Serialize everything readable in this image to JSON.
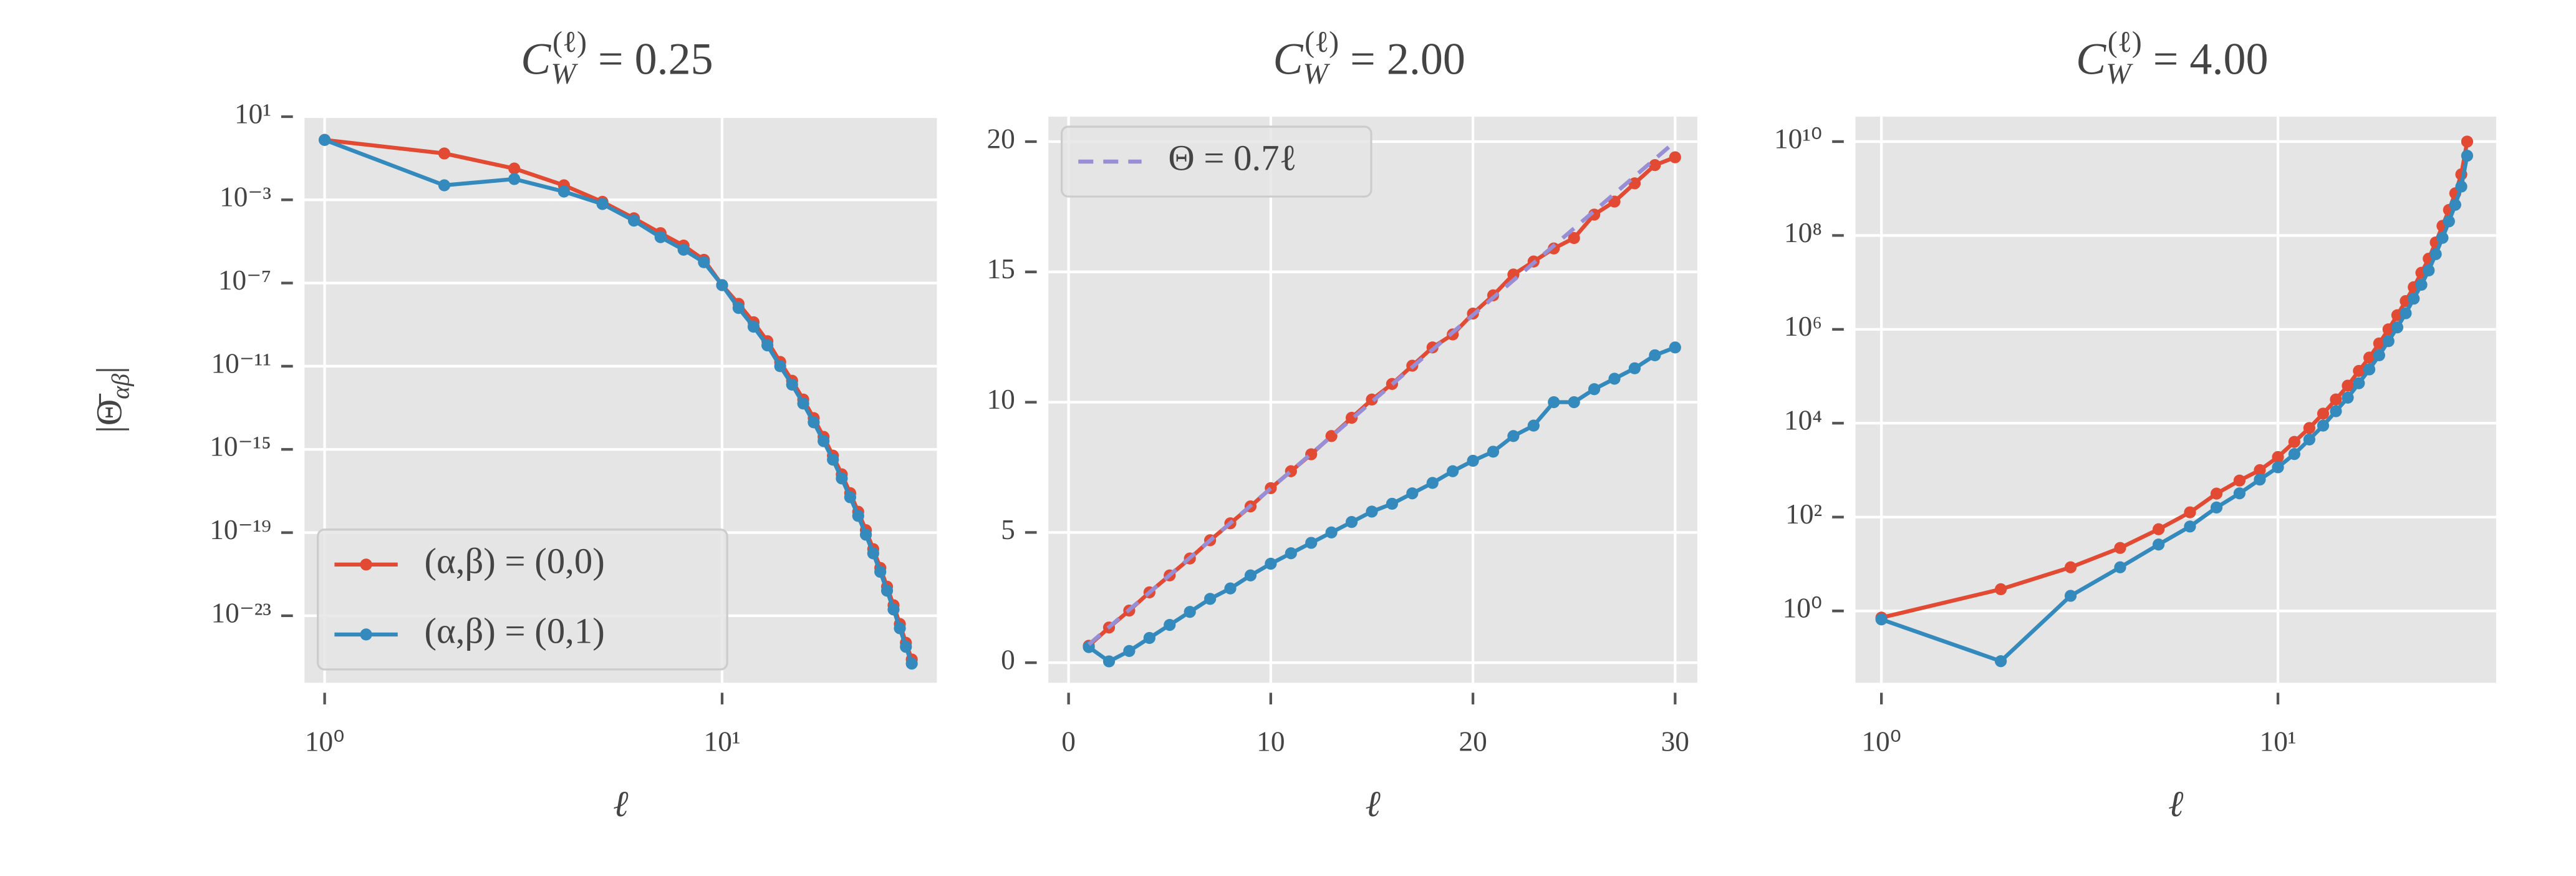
{
  "chart_data": [
    {
      "type": "line",
      "title": "CW(ℓ) = 0.25",
      "xlabel": "ℓ",
      "ylabel": "|Θ̄αβ|",
      "xscale": "log",
      "yscale": "log",
      "grid": true,
      "legend": "lower left",
      "xlim": [
        0.89,
        34.7
      ],
      "ylim": [
        6e-27,
        10
      ],
      "xticks": [
        {
          "value": 1,
          "label": "10⁰"
        },
        {
          "value": 10,
          "label": "10¹"
        }
      ],
      "yticks": [
        {
          "value": 10,
          "label": "10¹"
        },
        {
          "value": 0.001,
          "label": "10⁻³"
        },
        {
          "value": 1e-07,
          "label": "10⁻⁷"
        },
        {
          "value": 1e-11,
          "label": "10⁻¹¹"
        },
        {
          "value": 1e-15,
          "label": "10⁻¹⁵"
        },
        {
          "value": 1e-19,
          "label": "10⁻¹⁹"
        },
        {
          "value": 1e-23,
          "label": "10⁻²³"
        }
      ],
      "series": [
        {
          "name": "(α,β) = (0,0)",
          "color": "#E24A33",
          "x": [
            1,
            2,
            3,
            4,
            5,
            6,
            7,
            8,
            9,
            10,
            11,
            12,
            13,
            14,
            15,
            16,
            17,
            18,
            19,
            20,
            21,
            22,
            23,
            24,
            25,
            26,
            27,
            28,
            29,
            30
          ],
          "values": [
            0.76,
            0.17,
            0.032,
            0.005,
            0.0008,
            0.00013,
            2.5e-05,
            6.3e-06,
            1.3e-06,
            7.9e-08,
            1e-08,
            1.3e-09,
            1.6e-10,
            1.6e-11,
            2e-12,
            2.5e-13,
            3.2e-14,
            4e-15,
            5e-16,
            6.3e-17,
            7.9e-18,
            1e-18,
            1.3e-19,
            1.6e-20,
            2e-21,
            2.5e-22,
            3.2e-23,
            4e-24,
            5e-25,
            7.9e-26
          ]
        },
        {
          "name": "(α,β) = (0,1)",
          "color": "#348ABD",
          "x": [
            1,
            2,
            3,
            4,
            5,
            6,
            7,
            8,
            9,
            10,
            11,
            12,
            13,
            14,
            15,
            16,
            17,
            18,
            19,
            20,
            21,
            22,
            23,
            24,
            25,
            26,
            27,
            28,
            29,
            30
          ],
          "values": [
            0.76,
            0.005,
            0.01,
            0.0025,
            0.00063,
            0.0001,
            1.6e-05,
            4e-06,
            1e-06,
            7.9e-08,
            6.3e-09,
            7.9e-10,
            1e-10,
            1e-11,
            1.3e-12,
            1.6e-13,
            2e-14,
            2.5e-15,
            3.2e-16,
            4e-17,
            5e-18,
            6.3e-19,
            7.9e-20,
            1e-20,
            1.3e-21,
            1.6e-22,
            2e-23,
            2.5e-24,
            3.2e-25,
            5e-26
          ]
        }
      ]
    },
    {
      "type": "line",
      "title": "CW(ℓ) = 2.00",
      "xlabel": "ℓ",
      "xscale": "linear",
      "yscale": "linear",
      "grid": true,
      "legend": "upper left",
      "xlim": [
        -1,
        31.1
      ],
      "ylim": [
        -0.77,
        20.96
      ],
      "xticks": [
        0,
        10,
        20,
        30
      ],
      "yticks": [
        0,
        5,
        10,
        15,
        20
      ],
      "series": [
        {
          "color": "#E24A33",
          "x": [
            1,
            2,
            3,
            4,
            5,
            6,
            7,
            8,
            9,
            10,
            11,
            12,
            13,
            14,
            15,
            16,
            17,
            18,
            19,
            20,
            21,
            22,
            23,
            24,
            25,
            26,
            27,
            28,
            29,
            30
          ],
          "values": [
            0.65,
            1.35,
            2.0,
            2.7,
            3.35,
            4.0,
            4.7,
            5.35,
            6.0,
            6.7,
            7.35,
            8.0,
            8.7,
            9.4,
            10.1,
            10.7,
            11.4,
            12.1,
            12.6,
            13.4,
            14.1,
            14.9,
            15.4,
            15.9,
            16.3,
            17.2,
            17.7,
            18.4,
            19.1,
            19.4
          ]
        },
        {
          "color": "#348ABD",
          "x": [
            1,
            2,
            3,
            4,
            5,
            6,
            7,
            8,
            9,
            10,
            11,
            12,
            13,
            14,
            15,
            16,
            17,
            18,
            19,
            20,
            21,
            22,
            23,
            24,
            25,
            26,
            27,
            28,
            29,
            30
          ],
          "values": [
            0.6,
            0.05,
            0.45,
            0.95,
            1.45,
            1.95,
            2.45,
            2.85,
            3.35,
            3.8,
            4.2,
            4.6,
            5.0,
            5.4,
            5.8,
            6.1,
            6.5,
            6.9,
            7.35,
            7.75,
            8.1,
            8.7,
            9.1,
            10.0,
            10.0,
            10.5,
            10.9,
            11.3,
            11.8,
            12.1
          ]
        },
        {
          "name": "Θ = 0.7ℓ",
          "color": "#988ED5",
          "linestyle": "dashed",
          "x": [
            1,
            30
          ],
          "values": [
            0.7,
            20.0
          ]
        }
      ]
    },
    {
      "type": "line",
      "title": "CW(ℓ) = 4.00",
      "xlabel": "ℓ",
      "xscale": "log",
      "yscale": "log",
      "grid": true,
      "xlim": [
        0.86,
        35.5
      ],
      "ylim": [
        0.0295,
        34000000000.0
      ],
      "xticks": [
        {
          "value": 1,
          "label": "10⁰"
        },
        {
          "value": 10,
          "label": "10¹"
        }
      ],
      "yticks": [
        {
          "value": 1,
          "label": "10⁰"
        },
        {
          "value": 100,
          "label": "10²"
        },
        {
          "value": 10000,
          "label": "10⁴"
        },
        {
          "value": 1000000,
          "label": "10⁶"
        },
        {
          "value": 100000000,
          "label": "10⁸"
        },
        {
          "value": 10000000000,
          "label": "10¹⁰"
        }
      ],
      "series": [
        {
          "color": "#E24A33",
          "x": [
            1,
            2,
            3,
            4,
            5,
            6,
            7,
            8,
            9,
            10,
            11,
            12,
            13,
            14,
            15,
            16,
            17,
            18,
            19,
            20,
            21,
            22,
            23,
            24,
            25,
            26,
            27,
            28,
            29,
            30
          ],
          "values": [
            0.72,
            2.9,
            8.5,
            22,
            55,
            126,
            316,
            600,
            1000,
            1900,
            4000,
            7900,
            16000,
            32000,
            63000,
            130000,
            250000,
            500000,
            1000000,
            2000000,
            4000000,
            7900000,
            16000000,
            32000000,
            71000000,
            160000000,
            350000000,
            790000000,
            2000000000,
            10000000000
          ]
        },
        {
          "color": "#348ABD",
          "x": [
            1,
            2,
            3,
            4,
            5,
            6,
            7,
            8,
            9,
            10,
            11,
            12,
            13,
            14,
            15,
            16,
            17,
            18,
            19,
            20,
            21,
            22,
            23,
            24,
            25,
            26,
            27,
            28,
            29,
            30
          ],
          "values": [
            0.66,
            0.085,
            2.1,
            8.5,
            26,
            63,
            160,
            320,
            630,
            1150,
            2200,
            4500,
            8900,
            18000,
            35000,
            71000,
            140000,
            280000,
            560000,
            1100000,
            2200000,
            4500000,
            8900000,
            18000000,
            40000000,
            89000000,
            200000000,
            450000000,
            1100000000,
            5000000000
          ]
        }
      ]
    }
  ]
}
